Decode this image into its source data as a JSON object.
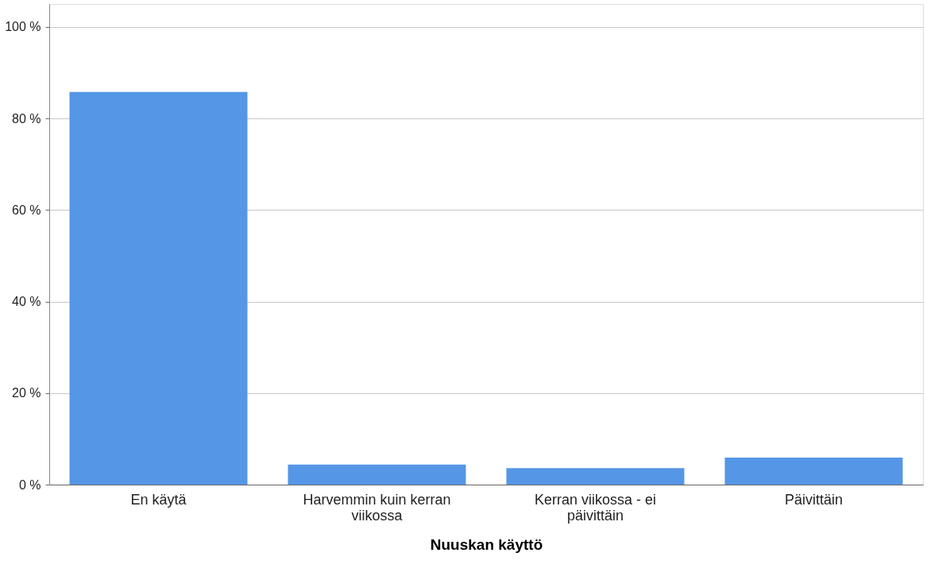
{
  "chart_data": {
    "type": "bar",
    "xlabel": "Nuuskan käyttö",
    "categories": [
      "En käytä",
      "Harvemmin kuin kerran viikossa",
      "Kerran viikossa - ei päivittäin",
      "Päivittäin"
    ],
    "values": [
      85.8,
      4.4,
      3.6,
      5.9
    ],
    "color": "#5596e6",
    "ylim": [
      0,
      105
    ],
    "yticks": [
      {
        "value": 0,
        "label": "0 %"
      },
      {
        "value": 20,
        "label": "20 %"
      },
      {
        "value": 40,
        "label": "40 %"
      },
      {
        "value": 60,
        "label": "60 %"
      },
      {
        "value": 80,
        "label": "80 %"
      },
      {
        "value": 100,
        "label": "100 %"
      }
    ],
    "grid": "y"
  }
}
